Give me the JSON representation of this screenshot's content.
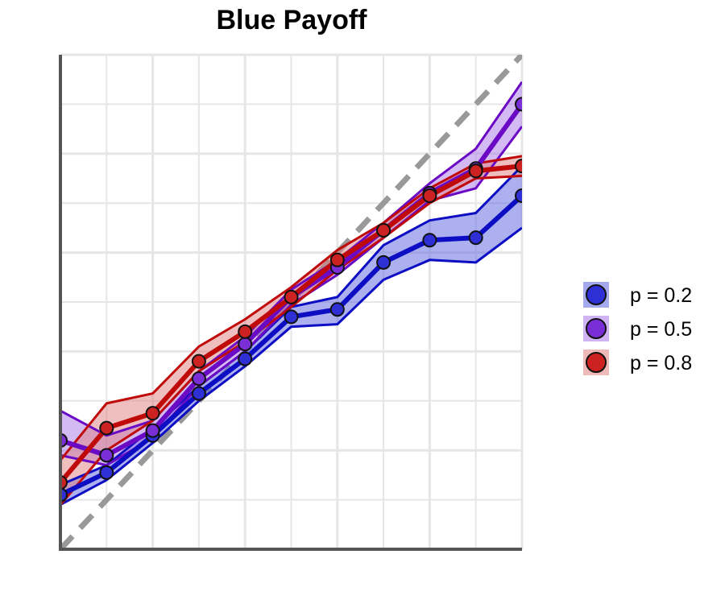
{
  "chart_data": {
    "type": "line",
    "title": "Blue Payoff",
    "xlabel": "",
    "ylabel": "",
    "xlim": [
      0,
      1
    ],
    "ylim": [
      0,
      1
    ],
    "x": [
      0.0,
      0.1,
      0.2,
      0.3,
      0.4,
      0.5,
      0.6,
      0.7,
      0.8,
      0.9,
      1.0
    ],
    "grid": true,
    "show_tick_labels": false,
    "reference_line": {
      "type": "identity",
      "style": "dashed",
      "color": "#999999"
    },
    "legend_position": "right",
    "series": [
      {
        "name": "p = 0.2",
        "color": "#0d0dc4",
        "fill": "#5a62e0",
        "point_color": "#2f2fd6",
        "values": [
          0.11,
          0.155,
          0.23,
          0.315,
          0.385,
          0.47,
          0.485,
          0.58,
          0.625,
          0.63,
          0.715
        ],
        "lower": [
          0.09,
          0.14,
          0.215,
          0.3,
          0.37,
          0.45,
          0.455,
          0.545,
          0.585,
          0.58,
          0.65
        ],
        "upper": [
          0.13,
          0.17,
          0.245,
          0.33,
          0.4,
          0.49,
          0.51,
          0.615,
          0.665,
          0.68,
          0.775
        ]
      },
      {
        "name": "p = 0.5",
        "color": "#6a0ac4",
        "fill": "#a775e8",
        "point_color": "#7a2fd6",
        "values": [
          0.22,
          0.19,
          0.24,
          0.345,
          0.415,
          0.51,
          0.57,
          0.645,
          0.72,
          0.77,
          0.9
        ],
        "lower": [
          0.19,
          0.17,
          0.225,
          0.33,
          0.4,
          0.495,
          0.555,
          0.63,
          0.705,
          0.73,
          0.855
        ],
        "upper": [
          0.28,
          0.23,
          0.26,
          0.36,
          0.43,
          0.525,
          0.585,
          0.66,
          0.74,
          0.81,
          0.945
        ]
      },
      {
        "name": "p = 0.8",
        "color": "#c00a0a",
        "fill": "#e08080",
        "point_color": "#cc2222",
        "values": [
          0.135,
          0.245,
          0.275,
          0.38,
          0.44,
          0.51,
          0.585,
          0.645,
          0.715,
          0.765,
          0.775
        ],
        "lower": [
          0.09,
          0.2,
          0.26,
          0.36,
          0.42,
          0.49,
          0.565,
          0.63,
          0.7,
          0.75,
          0.755
        ],
        "upper": [
          0.18,
          0.295,
          0.315,
          0.41,
          0.465,
          0.53,
          0.605,
          0.66,
          0.73,
          0.78,
          0.795
        ]
      }
    ]
  }
}
